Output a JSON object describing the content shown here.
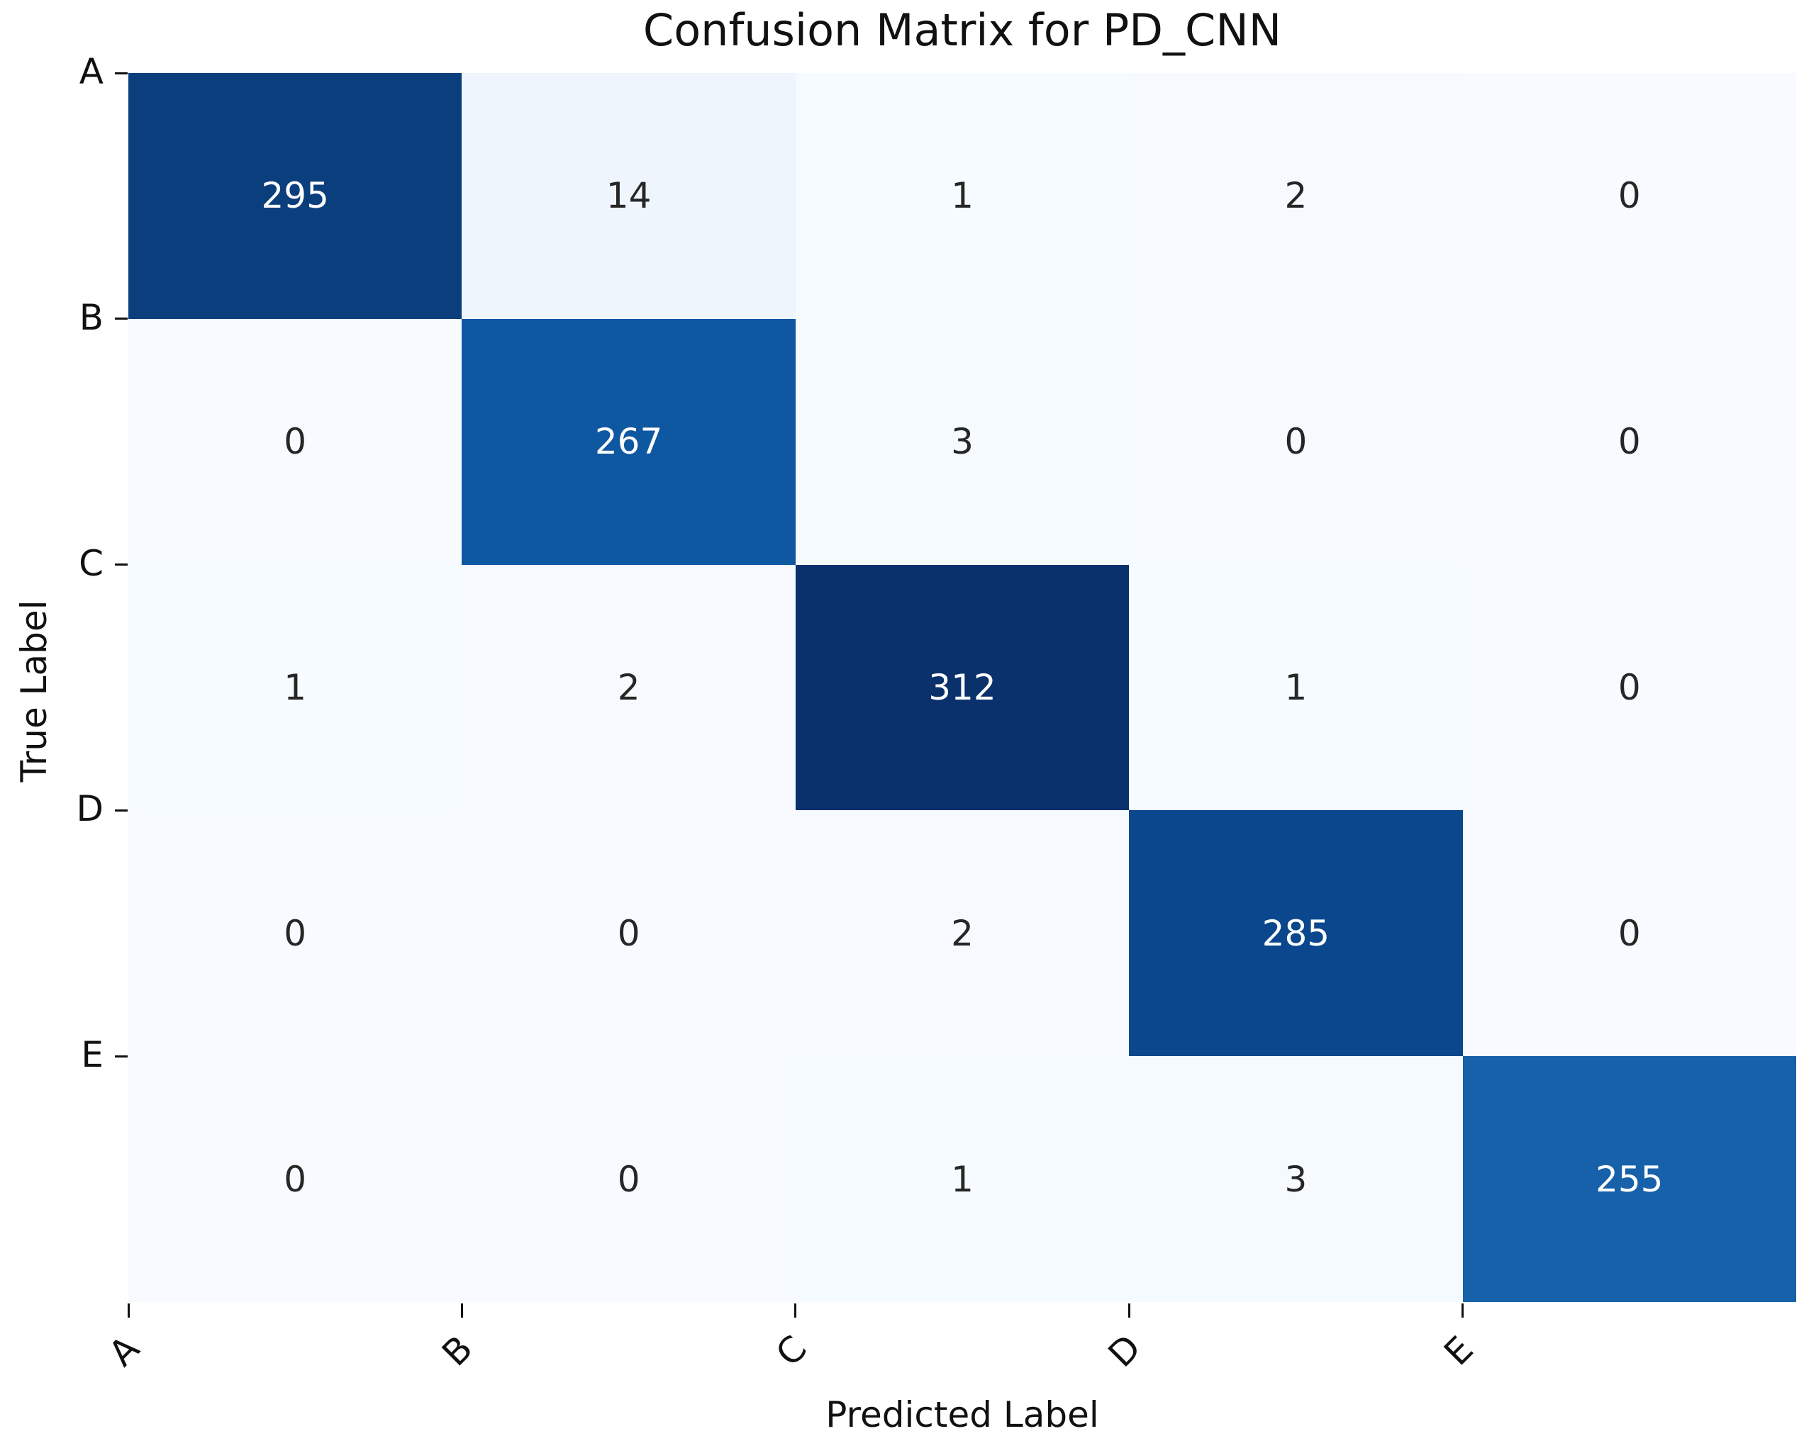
{
  "title": "Confusion Matrix for PD_CNN",
  "chart_data": {
    "type": "heatmap",
    "title": "Confusion Matrix for PD_CNN",
    "xlabel": "Predicted Label",
    "ylabel": "True Label",
    "x_categories": [
      "A",
      "B",
      "C",
      "D",
      "E"
    ],
    "y_categories": [
      "A",
      "B",
      "C",
      "D",
      "E"
    ],
    "matrix": [
      [
        295,
        14,
        1,
        2,
        0
      ],
      [
        0,
        267,
        3,
        0,
        0
      ],
      [
        1,
        2,
        312,
        1,
        0
      ],
      [
        0,
        0,
        2,
        285,
        0
      ],
      [
        0,
        0,
        1,
        3,
        255
      ]
    ],
    "value_range": [
      0,
      312
    ],
    "colormap": "Blues",
    "grid": false,
    "legend": "none",
    "cell_colors": [
      [
        "#0b3e7d",
        "#eef5fc",
        "#f6fbff",
        "#f6fafe",
        "#f7fbff"
      ],
      [
        "#f7fbff",
        "#0e57a1",
        "#f5fafe",
        "#f7fbff",
        "#f7fbff"
      ],
      [
        "#f6fbff",
        "#f6fafe",
        "#0a316b",
        "#f6fbff",
        "#f7fbff"
      ],
      [
        "#f7fbff",
        "#f7fbff",
        "#f6fafe",
        "#0a478d",
        "#f7fbff"
      ],
      [
        "#f7fbff",
        "#f7fbff",
        "#f6fbff",
        "#f5fafe",
        "#1661a9"
      ]
    ],
    "annot_dark_color": "#262626",
    "annot_light_color": "#ffffff",
    "tick_color": "#111111"
  }
}
